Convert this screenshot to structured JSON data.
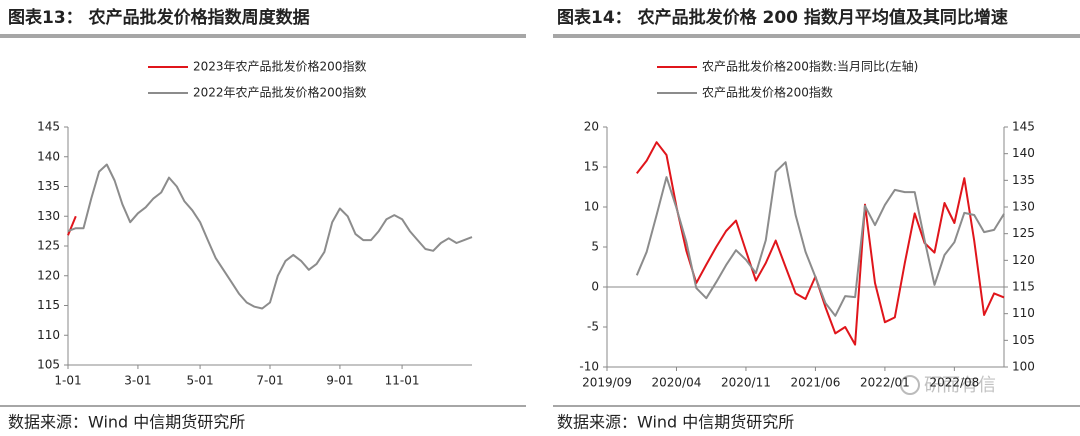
{
  "chart_data": [
    {
      "type": "line",
      "title": "图表13： 农产品批发价格指数周度数据",
      "source": "数据来源：Wind 中信期货研究所",
      "categories": [
        "1-01",
        null,
        null,
        null,
        null,
        null,
        null,
        null,
        null,
        "3-01",
        null,
        null,
        null,
        null,
        null,
        null,
        null,
        "5-01",
        null,
        null,
        null,
        null,
        null,
        null,
        null,
        null,
        "7-01",
        null,
        null,
        null,
        null,
        null,
        null,
        null,
        null,
        "9-01",
        null,
        null,
        null,
        null,
        null,
        null,
        null,
        "11-01",
        null,
        null,
        null,
        null,
        null,
        null,
        null,
        null,
        null
      ],
      "series": [
        {
          "name": "2023年农产品批发价格200指数",
          "color": "#e0151b",
          "values": [
            126.8,
            130,
            null,
            null,
            null,
            null,
            null,
            null,
            null,
            null,
            null,
            null,
            null,
            null,
            null,
            null,
            null,
            null,
            null,
            null,
            null,
            null,
            null,
            null,
            null,
            null,
            null,
            null,
            null,
            null,
            null,
            null,
            null,
            null,
            null,
            null,
            null,
            null,
            null,
            null,
            null,
            null,
            null,
            null,
            null,
            null,
            null,
            null,
            null,
            null,
            null,
            null,
            null
          ]
        },
        {
          "name": "2022年农产品批发价格200指数",
          "color": "#8c8c8c",
          "values": [
            127.5,
            128,
            128,
            133,
            137.5,
            138.7,
            136,
            132,
            129,
            130.5,
            131.5,
            133,
            134,
            136.5,
            135,
            132.5,
            131,
            129,
            126,
            123,
            121,
            119,
            117,
            115.5,
            114.8,
            114.5,
            115.5,
            120,
            122.5,
            123.5,
            122.5,
            121,
            122,
            124,
            129,
            131.3,
            130,
            127,
            126,
            126,
            127.5,
            129.5,
            130.2,
            129.5,
            127.5,
            126,
            124.5,
            124.2,
            125.5,
            126.3,
            125.5,
            126,
            126.5
          ]
        }
      ],
      "ylim": [
        105,
        145
      ],
      "yticks": [
        105,
        110,
        115,
        120,
        125,
        130,
        135,
        140,
        145
      ],
      "legend": "top"
    },
    {
      "type": "line",
      "title": "图表14： 农产品批发价格 200 指数月平均值及其同比增速",
      "source": "数据来源：Wind 中信期货研究所",
      "categories": [
        "2019/09",
        null,
        null,
        null,
        null,
        null,
        null,
        "2020/04",
        null,
        null,
        null,
        null,
        null,
        null,
        "2020/11",
        null,
        null,
        null,
        null,
        null,
        null,
        "2021/06",
        null,
        null,
        null,
        null,
        null,
        null,
        "2022/01",
        null,
        null,
        null,
        null,
        null,
        null,
        "2022/08",
        null,
        null,
        null,
        null,
        null
      ],
      "series": [
        {
          "name": "农产品批发价格200指数:当月同比(左轴)",
          "color": "#e0151b",
          "values": [
            null,
            null,
            null,
            14.2,
            15.8,
            18.1,
            16.5,
            10,
            4.5,
            0.5,
            2.8,
            5,
            7,
            8.3,
            4.5,
            0.8,
            3,
            5.8,
            2.5,
            -0.8,
            -1.5,
            1.3,
            -2.5,
            -5.8,
            -5,
            -7.2,
            10.3,
            0.5,
            -4.4,
            -3.8,
            3,
            9.2,
            5.5,
            4.3,
            10.5,
            8,
            13.6,
            5.8,
            -3.5,
            -0.8,
            -1.3
          ]
        },
        {
          "name": "农产品批发价格200指数",
          "color": "#8c8c8c",
          "axis": "y2",
          "values": [
            null,
            null,
            null,
            117.2,
            121.6,
            128.5,
            135.6,
            129.8,
            123.4,
            114.8,
            112.9,
            115.9,
            119.1,
            121.9,
            120.1,
            117.6,
            123.8,
            136.6,
            138.4,
            128.5,
            121.6,
            116.9,
            112,
            109.6,
            113.3,
            113.1,
            130.2,
            126.6,
            130.4,
            133.2,
            132.8,
            132.8,
            123.8,
            115.4,
            121,
            123.4,
            128.9,
            128.5,
            125.3,
            125.7,
            128.7
          ]
        }
      ],
      "ylim": [
        -10,
        20
      ],
      "yticks": [
        -10,
        -5,
        0,
        5,
        10,
        15,
        20
      ],
      "y2lim": [
        100,
        145
      ],
      "y2ticks": [
        100,
        105,
        110,
        115,
        120,
        125,
        130,
        135,
        140,
        145
      ],
      "legend": "top"
    }
  ],
  "watermark": "研而有信"
}
